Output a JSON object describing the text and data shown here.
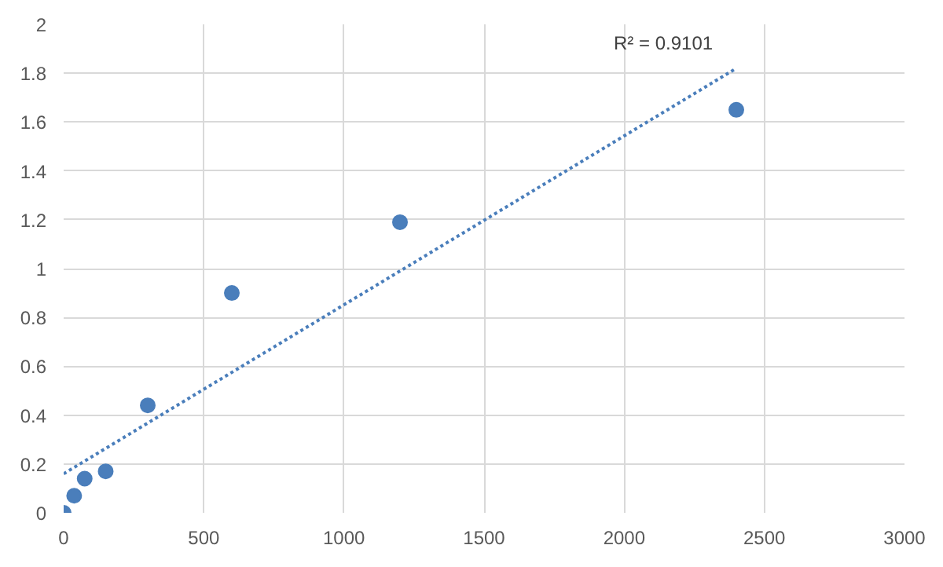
{
  "chart_data": {
    "type": "scatter",
    "xlim": [
      0,
      3000
    ],
    "ylim": [
      0,
      2
    ],
    "xticks": [
      0,
      500,
      1000,
      1500,
      2000,
      2500,
      3000
    ],
    "yticks": [
      0,
      0.2,
      0.4,
      0.6,
      0.8,
      1,
      1.2,
      1.4,
      1.6,
      1.8,
      2
    ],
    "grid": true,
    "series": [
      {
        "color": "#4a7ebb",
        "marker": "circle",
        "x": [
          0,
          37.5,
          75,
          150,
          300,
          600,
          1200,
          2400
        ],
        "values": [
          0,
          0.07,
          0.14,
          0.17,
          0.44,
          0.9,
          1.19,
          1.65
        ]
      },
      {
        "type": "line",
        "color": "#4a7ebb",
        "line_style": "dotted",
        "x": [
          0,
          2400
        ],
        "values": [
          0.16,
          1.82
        ]
      }
    ],
    "annotations": [
      "R² = 0.9101"
    ]
  }
}
